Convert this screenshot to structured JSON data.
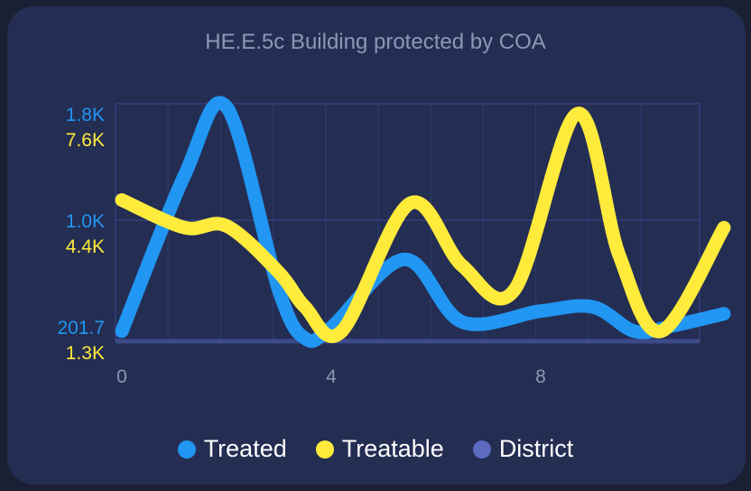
{
  "title": "HE.E.5c Building protected by COA",
  "legend": {
    "items": [
      {
        "label": "Treated",
        "color": "#2196f3"
      },
      {
        "label": "Treatable",
        "color": "#ffeb3b"
      },
      {
        "label": "District",
        "color": "#5c6bc0"
      }
    ]
  },
  "chart_data": {
    "type": "line",
    "title": "HE.E.5c Building protected by COA",
    "x_ticks": [
      "0",
      "4",
      "8"
    ],
    "xlim": [
      0,
      11
    ],
    "grid": true,
    "legend_position": "bottom",
    "axes": [
      {
        "side": "left",
        "series": "Treated",
        "color": "#2196f3",
        "tick_labels": [
          "1.8K",
          "1.0K",
          "201.7"
        ],
        "ylim": [
          201.7,
          1800
        ]
      },
      {
        "side": "left",
        "series": "Treatable",
        "color": "#ffeb3b",
        "tick_labels": [
          "7.6K",
          "4.4K",
          "1.3K"
        ],
        "ylim": [
          1300,
          7600
        ]
      }
    ],
    "series": [
      {
        "name": "Treated",
        "color": "#2196f3",
        "x": [
          0,
          1.2,
          2,
          3,
          3.5,
          4,
          5.4,
          6.5,
          8,
          9,
          9.8,
          10.5,
          11.5
        ],
        "values": [
          201.7,
          1350,
          1850,
          500,
          150,
          230,
          730,
          270,
          350,
          380,
          200,
          240,
          330
        ]
      },
      {
        "name": "Treatable",
        "color": "#ffeb3b",
        "x": [
          0,
          1.2,
          2,
          3,
          3.5,
          4.2,
          5.5,
          6.5,
          7.5,
          8.7,
          9.5,
          10.3,
          11.5
        ],
        "values": [
          5100,
          4300,
          4350,
          3000,
          2000,
          1300,
          5000,
          3200,
          2500,
          7600,
          3500,
          1300,
          4300
        ]
      },
      {
        "name": "District",
        "color": "#5c6bc0",
        "x": [],
        "values": []
      }
    ]
  }
}
